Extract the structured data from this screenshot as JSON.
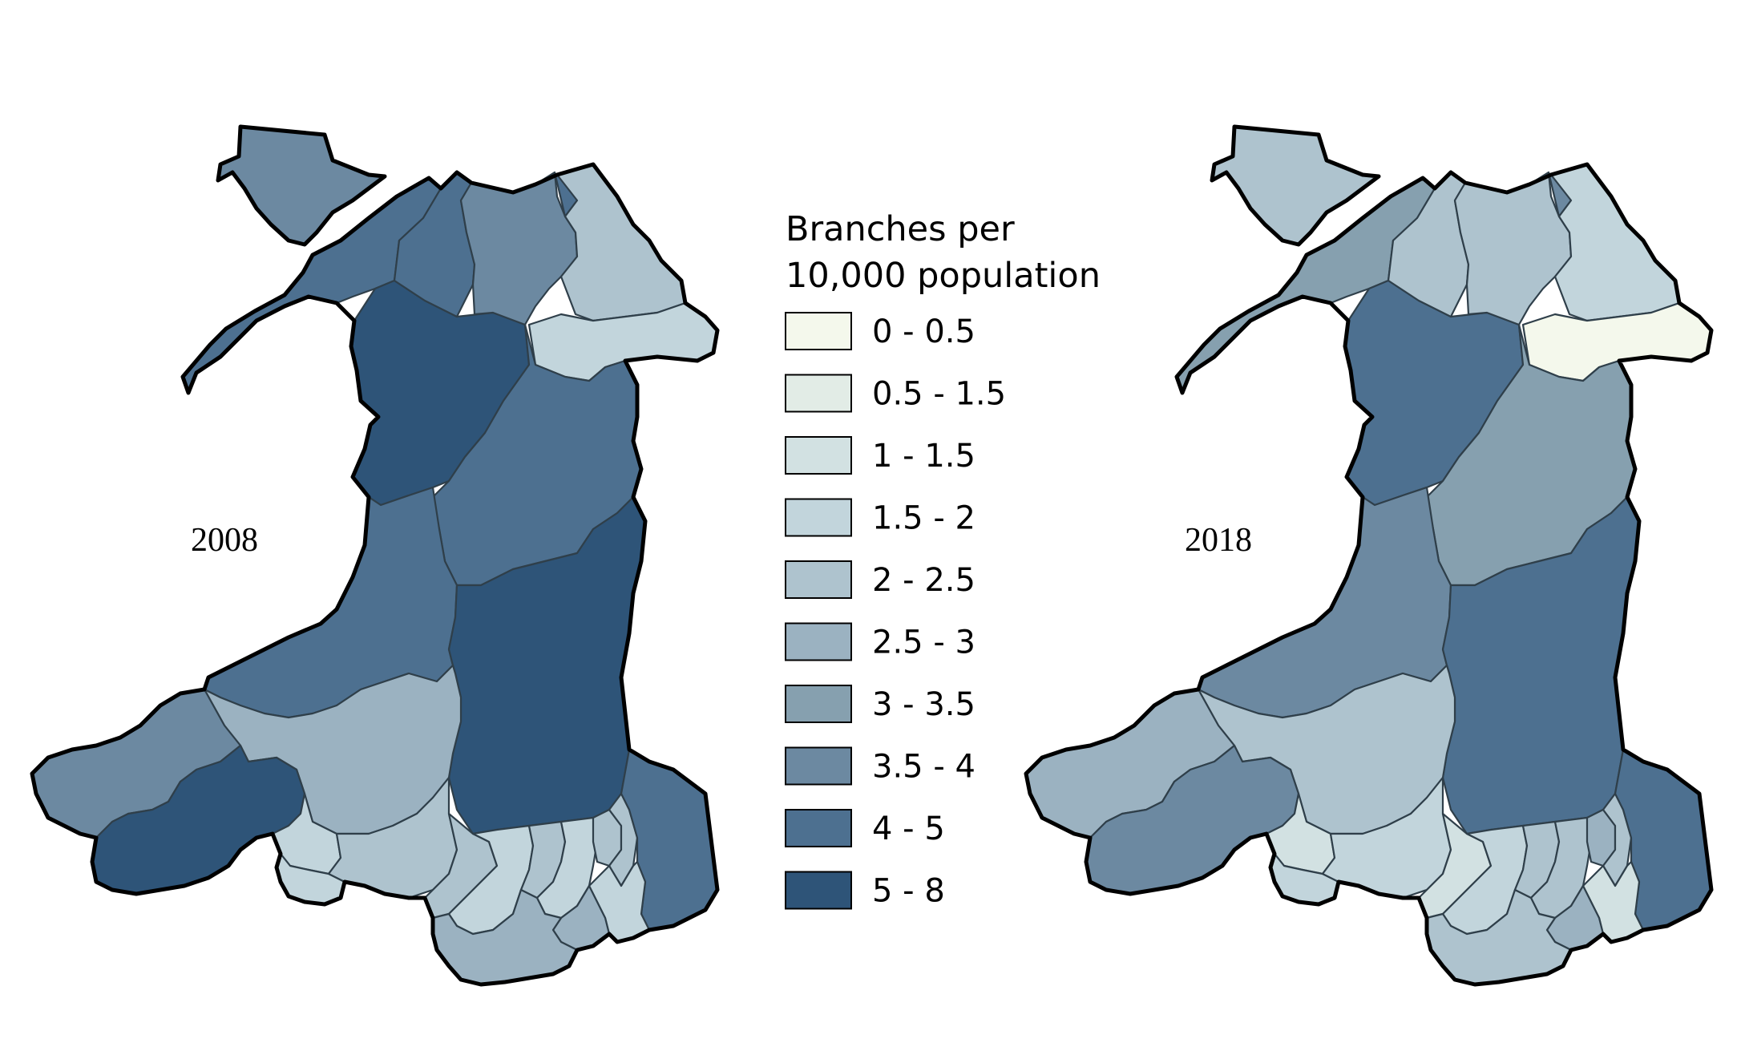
{
  "maps": [
    {
      "year": "2008",
      "values": {
        "anglesey": "3.5 - 4",
        "gwynedd_n": "4 - 5",
        "gwynedd_s": "5 - 8",
        "conwy": "4 - 5",
        "denbighshire": "3.5 - 4",
        "flintshire_w": "4 - 5",
        "flintshire_e": "2 - 2.5",
        "wrexham": "1.5 - 2",
        "powys_n": "4 - 5",
        "ceredigion": "4 - 5",
        "powys_s": "5 - 8",
        "carmarthenshire": "2.5 - 3",
        "pembrokeshire": "3.5 - 4",
        "pembroke_south": "5 - 8",
        "swansea": "1.5 - 2",
        "gower": "1.5 - 2",
        "neath_port_talbot": "2 - 2.5",
        "bridgend": "2 - 2.5",
        "rct": "1.5 - 2",
        "merthyr": "2 - 2.5",
        "caerphilly": "1.5 - 2",
        "blaenau": "2 - 2.5",
        "torfaen": "2 - 2.5",
        "monmouthshire": "4 - 5",
        "newport": "1.5 - 2",
        "cardiff": "2.5 - 3",
        "vale": "2.5 - 3"
      }
    },
    {
      "year": "2018",
      "values": {
        "anglesey": "2 - 2.5",
        "gwynedd_n": "3 - 3.5",
        "gwynedd_s": "4 - 5",
        "conwy": "2 - 2.5",
        "denbighshire": "2 - 2.5",
        "flintshire_w": "3.5 - 4",
        "flintshire_e": "1.5 - 2",
        "wrexham": "0 - 0.5",
        "powys_n": "3 - 3.5",
        "ceredigion": "3.5 - 4",
        "powys_s": "4 - 5",
        "carmarthenshire": "2 - 2.5",
        "pembrokeshire": "2.5 - 3",
        "pembroke_south": "3.5 - 4",
        "swansea": "1 - 1.5",
        "gower": "1.5 - 2",
        "neath_port_talbot": "1.5 - 2",
        "bridgend": "1 - 1.5",
        "rct": "1.5 - 2",
        "merthyr": "2 - 2.5",
        "caerphilly": "2 - 2.5",
        "blaenau": "2.5 - 3",
        "torfaen": "2 - 2.5",
        "monmouthshire": "4 - 5",
        "newport": "1 - 1.5",
        "cardiff": "2.5 - 3",
        "vale": "2 - 2.5"
      }
    }
  ],
  "legend": {
    "title_line1": "Branches per",
    "title_line2": "10,000 population",
    "classes": [
      {
        "label": "0 - 0.5",
        "color": "#f4f8ec"
      },
      {
        "label": "0.5 - 1.5",
        "color": "#e2ece6"
      },
      {
        "label": "1 - 1.5",
        "color": "#d2e1e2"
      },
      {
        "label": "1.5 - 2",
        "color": "#c2d5dc"
      },
      {
        "label": "2 - 2.5",
        "color": "#aec3ce"
      },
      {
        "label": "2.5 - 3",
        "color": "#9bb2c1"
      },
      {
        "label": "3 - 3.5",
        "color": "#86a0af"
      },
      {
        "label": "3.5 - 4",
        "color": "#6c89a1"
      },
      {
        "label": "4 - 5",
        "color": "#4d7090"
      },
      {
        "label": "5 - 8",
        "color": "#2e5478"
      }
    ]
  }
}
